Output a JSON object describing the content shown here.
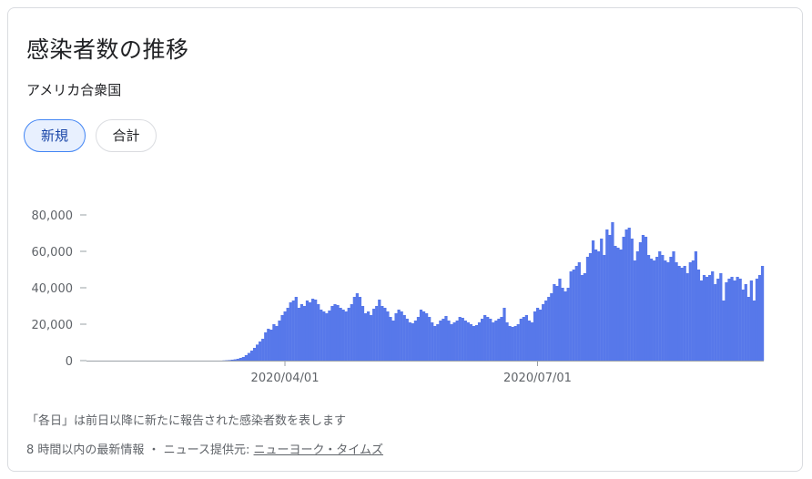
{
  "card": {
    "title": "感染者数の推移",
    "subtitle": "アメリカ合衆国",
    "tabs": [
      {
        "label": "新規",
        "active": true
      },
      {
        "label": "合計",
        "active": false
      }
    ],
    "footnote": "「各日」は前日以降に新たに報告された感染者数を表します",
    "source_prefix": "8 時間以内の最新情報 ・ ニュース提供元: ",
    "source_link": "ニューヨーク・タイムズ"
  },
  "colors": {
    "bar": "#5778ea",
    "bar_edge": "#4a6be0",
    "axis": "#9aa0a6",
    "chip_active_bg": "#e8f0fe",
    "chip_active_border": "#4285f4"
  },
  "chart_data": {
    "type": "bar",
    "x_start": "2020-01-21",
    "x_end": "2020-08-17",
    "ylim": [
      0,
      80000
    ],
    "yticks": [
      {
        "value": 0,
        "label": "0"
      },
      {
        "value": 20000,
        "label": "20,000"
      },
      {
        "value": 40000,
        "label": "40,000"
      },
      {
        "value": 60000,
        "label": "60,000"
      },
      {
        "value": 80000,
        "label": "80,000"
      }
    ],
    "xticks": [
      {
        "index": 71,
        "label": "2020/04/01"
      },
      {
        "index": 162,
        "label": "2020/07/01"
      }
    ],
    "values": [
      0,
      0,
      0,
      0,
      0,
      0,
      0,
      0,
      0,
      0,
      0,
      0,
      0,
      0,
      0,
      0,
      0,
      0,
      0,
      0,
      0,
      0,
      0,
      0,
      0,
      0,
      0,
      0,
      0,
      0,
      0,
      0,
      0,
      0,
      0,
      0,
      0,
      0,
      0,
      0,
      0,
      0,
      0,
      0,
      0,
      0,
      0,
      0,
      0,
      100,
      200,
      300,
      500,
      700,
      1000,
      1500,
      2000,
      3000,
      4200,
      5500,
      7000,
      8800,
      10500,
      12000,
      15500,
      17500,
      17000,
      20000,
      19000,
      22000,
      25000,
      27000,
      29000,
      32000,
      33000,
      35000,
      29000,
      31000,
      30000,
      33000,
      32000,
      34000,
      33500,
      31000,
      28000,
      27000,
      26000,
      27500,
      30000,
      31000,
      30500,
      29000,
      28000,
      27000,
      29000,
      31000,
      35000,
      37000,
      35000,
      30000,
      26000,
      27000,
      25000,
      28500,
      30000,
      33500,
      30000,
      29000,
      27000,
      24000,
      22000,
      26000,
      28000,
      27000,
      25000,
      23000,
      21000,
      20500,
      22000,
      24000,
      28000,
      27000,
      26000,
      24000,
      21000,
      19000,
      20000,
      22000,
      23000,
      24500,
      22000,
      20000,
      21000,
      22000,
      24000,
      23500,
      22000,
      21000,
      20000,
      19000,
      19500,
      21000,
      23000,
      25000,
      24000,
      23000,
      21000,
      22000,
      23000,
      24000,
      29000,
      21000,
      19000,
      18500,
      19000,
      20000,
      23000,
      24000,
      25000,
      22000,
      21000,
      27000,
      29000,
      28000,
      31000,
      33000,
      35000,
      37000,
      42000,
      41000,
      45000,
      40000,
      38000,
      40000,
      49000,
      50000,
      52000,
      54000,
      47000,
      48000,
      57000,
      59000,
      66000,
      61000,
      60000,
      67000,
      58000,
      72000,
      69000,
      76000,
      63000,
      62000,
      61000,
      68000,
      72000,
      73000,
      67000,
      55000,
      60000,
      65000,
      69000,
      68000,
      58000,
      56000,
      55000,
      57000,
      60000,
      58000,
      55000,
      54000,
      57000,
      60000,
      54000,
      52000,
      51000,
      52000,
      48000,
      54000,
      55000,
      60000,
      50000,
      44000,
      47000,
      46000,
      47000,
      49000,
      42000,
      45000,
      48000,
      33000,
      43000,
      45000,
      46000,
      44000,
      46000,
      45000,
      39000,
      42000,
      35000,
      44000,
      33000,
      45000,
      47000,
      52000
    ]
  }
}
